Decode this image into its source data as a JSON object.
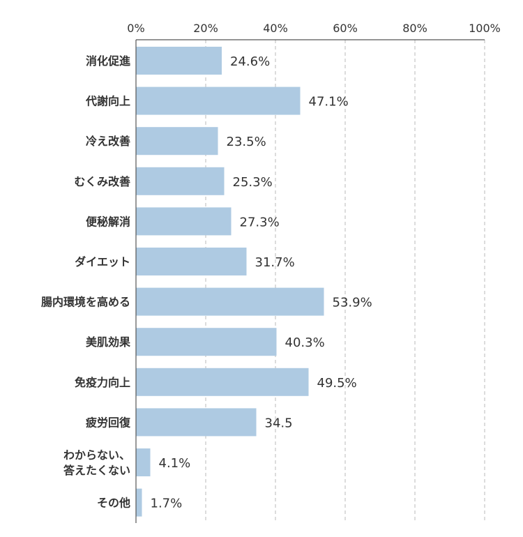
{
  "chart_data": {
    "type": "bar",
    "orientation": "horizontal",
    "categories": [
      [
        "消化促進"
      ],
      [
        "代謝向上"
      ],
      [
        "冷え改善"
      ],
      [
        "むくみ改善"
      ],
      [
        "便秘解消"
      ],
      [
        "ダイエット"
      ],
      [
        "腸内環境を高める"
      ],
      [
        "美肌効果"
      ],
      [
        "免疫力向上"
      ],
      [
        "疲労回復"
      ],
      [
        "わからない、",
        "答えたくない"
      ],
      [
        "その他"
      ]
    ],
    "values": [
      24.6,
      47.1,
      23.5,
      25.3,
      27.3,
      31.7,
      53.9,
      40.3,
      49.5,
      34.5,
      4.1,
      1.7
    ],
    "value_labels": [
      "24.6%",
      "47.1%",
      "23.5%",
      "25.3%",
      "27.3%",
      "31.7%",
      "53.9%",
      "40.3%",
      "49.5%",
      "34.5",
      "4.1%",
      "1.7%"
    ],
    "x_ticks": [
      "0%",
      "20%",
      "40%",
      "60%",
      "80%",
      "100%"
    ],
    "xlim": [
      0,
      100
    ],
    "grid": true,
    "axis_position": "top",
    "bar_color": "#aecae2"
  }
}
